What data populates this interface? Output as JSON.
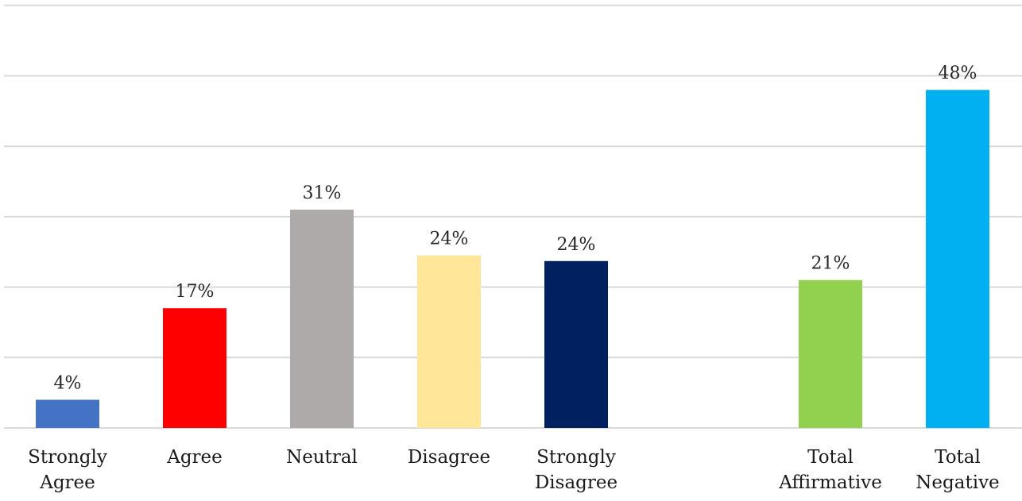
{
  "chart_data": {
    "type": "bar",
    "title": "",
    "xlabel": "",
    "ylabel": "",
    "ylim": [
      0,
      60
    ],
    "grid": true,
    "gridlines": [
      0,
      10,
      20,
      30,
      40,
      50,
      60
    ],
    "legend": "none",
    "categories": [
      {
        "label_lines": [
          "Strongly",
          "Agree"
        ],
        "value": 4,
        "label": "4%",
        "color": "#4472C4"
      },
      {
        "label_lines": [
          "Agree"
        ],
        "value": 17,
        "label": "17%",
        "color": "#FF0000"
      },
      {
        "label_lines": [
          "Neutral"
        ],
        "value": 31,
        "label": "31%",
        "color": "#AEAAAA"
      },
      {
        "label_lines": [
          "Disagree"
        ],
        "value": 24.5,
        "label": "24%",
        "color": "#FFE699"
      },
      {
        "label_lines": [
          "Strongly",
          "Disagree"
        ],
        "value": 23.7,
        "label": "24%",
        "color": "#002060"
      },
      {
        "label_lines": [
          "Total",
          "Affirmative"
        ],
        "value": 21,
        "label": "21%",
        "color": "#92D050"
      },
      {
        "label_lines": [
          "Total",
          "Negative"
        ],
        "value": 48,
        "label": "48%",
        "color": "#00B0F0"
      }
    ]
  }
}
